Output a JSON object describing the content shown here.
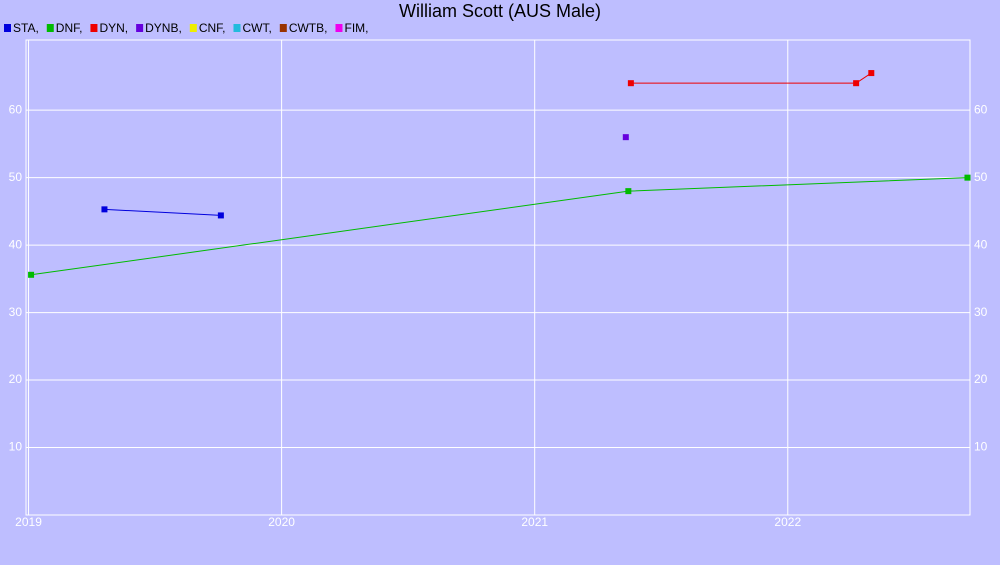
{
  "chart_data": {
    "type": "line",
    "title": "William Scott (AUS Male)",
    "xlim": [
      2018.99,
      2022.72
    ],
    "xticks": [
      2019,
      2020,
      2021,
      2022
    ],
    "ylim": [
      0,
      70.4
    ],
    "yticks": [
      10,
      20,
      30,
      40,
      50,
      60
    ],
    "grid": true,
    "legend": "top-left",
    "series": [
      {
        "name": "STA,",
        "color": "#0000dd",
        "x": [
          2019.3,
          2019.76
        ],
        "values": [
          45.3,
          44.4
        ]
      },
      {
        "name": "DNF,",
        "color": "#00bb00",
        "x": [
          2019.01,
          2021.37,
          2022.71
        ],
        "values": [
          35.6,
          48,
          50
        ]
      },
      {
        "name": "DYN,",
        "color": "#ee0000",
        "x": [
          2021.38,
          2022.27,
          2022.33
        ],
        "values": [
          64,
          64,
          65.5
        ]
      },
      {
        "name": "DYNB,",
        "color": "#6600dd",
        "x": [
          2021.36
        ],
        "values": [
          56
        ]
      },
      {
        "name": "CNF,",
        "color": "#eeee00",
        "x": [],
        "values": []
      },
      {
        "name": "CWT,",
        "color": "#22bbdd",
        "x": [],
        "values": []
      },
      {
        "name": "CWTB,",
        "color": "#993300",
        "x": [],
        "values": []
      },
      {
        "name": "FIM,",
        "color": "#ee00ee",
        "x": [],
        "values": []
      }
    ]
  }
}
